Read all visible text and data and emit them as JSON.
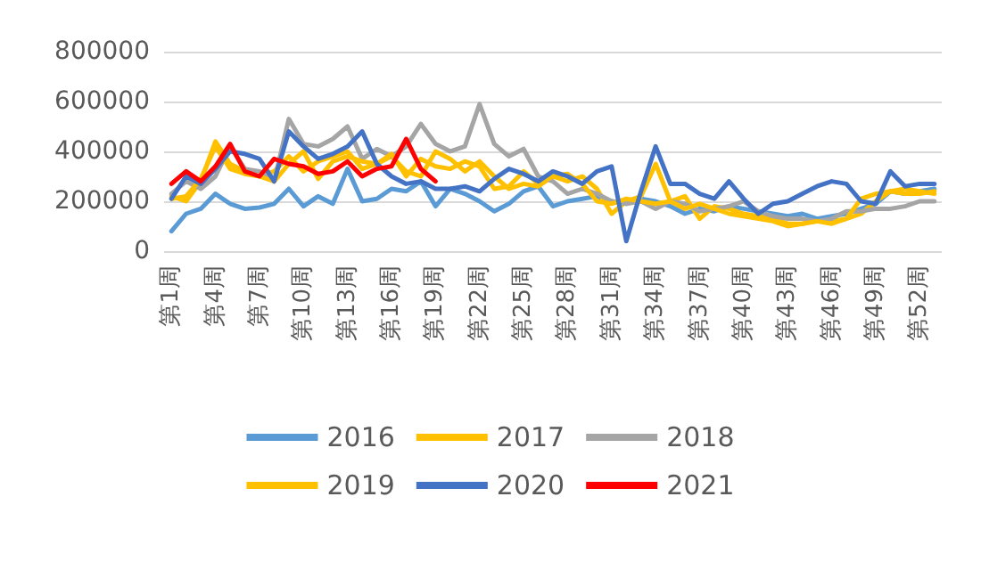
{
  "chart_data": {
    "type": "line",
    "categories": [
      "第1周",
      null,
      null,
      "第4周",
      null,
      null,
      "第7周",
      null,
      null,
      "第10周",
      null,
      null,
      "第13周",
      null,
      null,
      "第16周",
      null,
      null,
      "第19周",
      null,
      null,
      "第22周",
      null,
      null,
      "第25周",
      null,
      null,
      "第28周",
      null,
      null,
      "第31周",
      null,
      null,
      "第34周",
      null,
      null,
      "第37周",
      null,
      null,
      "第40周",
      null,
      null,
      "第43周",
      null,
      null,
      "第46周",
      null,
      null,
      "第49周",
      null,
      null,
      "第52周",
      null
    ],
    "series": [
      {
        "name": "2016",
        "color": "#5b9bd5",
        "values": [
          80000,
          150000,
          170000,
          230000,
          190000,
          170000,
          175000,
          190000,
          250000,
          180000,
          220000,
          190000,
          330000,
          200000,
          210000,
          250000,
          240000,
          280000,
          180000,
          250000,
          230000,
          200000,
          160000,
          190000,
          240000,
          260000,
          180000,
          200000,
          210000,
          220000,
          200000,
          190000,
          210000,
          200000,
          180000,
          150000,
          170000,
          160000,
          180000,
          170000,
          160000,
          150000,
          140000,
          150000,
          130000,
          140000,
          150000,
          170000,
          190000,
          240000,
          230000,
          240000,
          250000
        ]
      },
      {
        "name": "2017",
        "color": "#ffc000",
        "values": [
          220000,
          200000,
          280000,
          440000,
          350000,
          320000,
          300000,
          320000,
          380000,
          320000,
          360000,
          380000,
          400000,
          330000,
          350000,
          380000,
          320000,
          300000,
          400000,
          370000,
          320000,
          360000,
          300000,
          250000,
          270000,
          260000,
          300000,
          280000,
          300000,
          250000,
          150000,
          200000,
          220000,
          350000,
          200000,
          220000,
          130000,
          180000,
          170000,
          150000,
          140000,
          130000,
          110000,
          110000,
          120000,
          120000,
          130000,
          150000,
          200000,
          240000,
          230000,
          230000,
          240000
        ]
      },
      {
        "name": "2018",
        "color": "#a5a5a5",
        "values": [
          230000,
          280000,
          250000,
          300000,
          420000,
          330000,
          320000,
          280000,
          530000,
          430000,
          420000,
          450000,
          500000,
          370000,
          410000,
          380000,
          420000,
          510000,
          430000,
          400000,
          420000,
          590000,
          430000,
          380000,
          410000,
          300000,
          280000,
          230000,
          250000,
          230000,
          200000,
          190000,
          200000,
          170000,
          200000,
          190000,
          160000,
          170000,
          180000,
          200000,
          160000,
          140000,
          130000,
          130000,
          120000,
          130000,
          160000,
          160000,
          170000,
          170000,
          180000,
          200000,
          200000
        ]
      },
      {
        "name": "2019",
        "color": "#ffc000",
        "values": [
          210000,
          220000,
          290000,
          420000,
          330000,
          310000,
          300000,
          280000,
          350000,
          400000,
          290000,
          360000,
          380000,
          360000,
          350000,
          390000,
          300000,
          370000,
          340000,
          330000,
          360000,
          340000,
          250000,
          260000,
          320000,
          270000,
          300000,
          310000,
          270000,
          200000,
          190000,
          210000,
          200000,
          190000,
          200000,
          170000,
          190000,
          170000,
          150000,
          140000,
          130000,
          120000,
          100000,
          110000,
          120000,
          110000,
          130000,
          210000,
          230000,
          240000,
          250000,
          240000,
          230000
        ]
      },
      {
        "name": "2020",
        "color": "#4472c4",
        "values": [
          210000,
          300000,
          270000,
          330000,
          400000,
          390000,
          370000,
          280000,
          480000,
          420000,
          370000,
          390000,
          420000,
          480000,
          350000,
          300000,
          270000,
          280000,
          250000,
          250000,
          260000,
          240000,
          290000,
          330000,
          310000,
          280000,
          320000,
          300000,
          270000,
          320000,
          340000,
          40000,
          240000,
          420000,
          270000,
          270000,
          230000,
          210000,
          280000,
          210000,
          150000,
          190000,
          200000,
          230000,
          260000,
          280000,
          270000,
          200000,
          190000,
          320000,
          260000,
          270000,
          270000
        ]
      },
      {
        "name": "2021",
        "color": "#ff0000",
        "values": [
          270000,
          320000,
          280000,
          340000,
          430000,
          320000,
          300000,
          370000,
          350000,
          340000,
          310000,
          320000,
          360000,
          300000,
          330000,
          340000,
          450000,
          330000,
          280000,
          null,
          null,
          null,
          null,
          null,
          null,
          null,
          null,
          null,
          null,
          null,
          null,
          null,
          null,
          null,
          null,
          null,
          null,
          null,
          null,
          null,
          null,
          null,
          null,
          null,
          null,
          null,
          null,
          null,
          null,
          null,
          null,
          null,
          null
        ]
      }
    ],
    "ylim": [
      0,
      800000
    ],
    "yticks": [
      0,
      200000,
      400000,
      600000,
      800000
    ],
    "grid": "y",
    "legend": "bottom",
    "marker": "none",
    "line_style": "solid"
  }
}
